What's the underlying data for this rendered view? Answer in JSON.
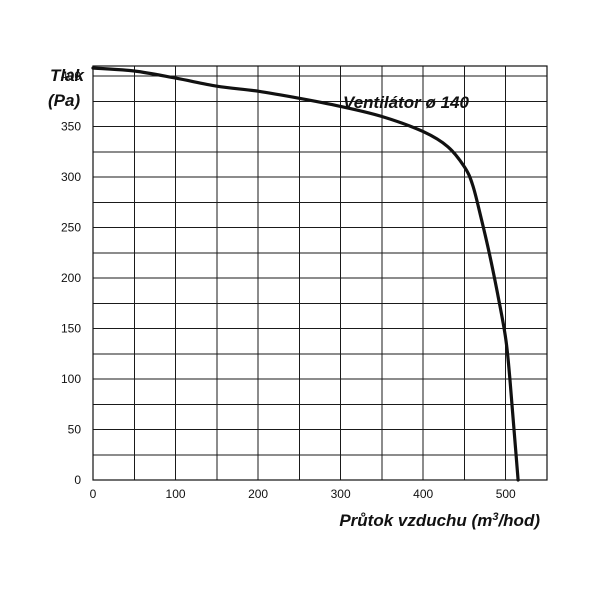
{
  "chart_data": {
    "type": "line",
    "title": "",
    "annotation": "Ventilátor ø 140",
    "ylabel_line1": "Tlak",
    "ylabel_line2": "(Pa)",
    "xlabel_main": "Průtok vzduchu (m",
    "xlabel_sup": "3",
    "xlabel_end": "/hod)",
    "xlim": [
      0,
      550
    ],
    "ylim": [
      0,
      410
    ],
    "grid": true,
    "x_ticks": [
      0,
      100,
      200,
      300,
      400,
      500
    ],
    "y_ticks": [
      0,
      50,
      100,
      150,
      200,
      250,
      300,
      350,
      400
    ],
    "x_gridlines": [
      0,
      50,
      100,
      150,
      200,
      250,
      300,
      350,
      400,
      450,
      500,
      550
    ],
    "y_gridlines": [
      0,
      25,
      50,
      75,
      100,
      125,
      150,
      175,
      200,
      225,
      250,
      275,
      300,
      325,
      350,
      375,
      400
    ],
    "series": [
      {
        "x": [
          0,
          50,
          100,
          150,
          200,
          250,
          300,
          350,
          400,
          430,
          450,
          460,
          470,
          480,
          490,
          500,
          505,
          510,
          515
        ],
        "y": [
          408,
          405,
          398,
          390,
          385,
          378,
          370,
          360,
          345,
          330,
          310,
          292,
          260,
          225,
          185,
          140,
          100,
          50,
          0
        ]
      }
    ],
    "line_color": "#111111"
  }
}
